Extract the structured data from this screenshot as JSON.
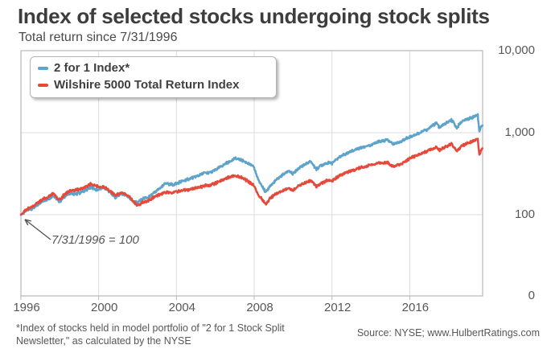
{
  "header": {
    "title": "Index of selected stocks undergoing stock splits",
    "subtitle": "Total return since 7/31/1996"
  },
  "legend": {
    "items": [
      {
        "label": "2 for 1 Index*",
        "color": "#5ea3c9"
      },
      {
        "label": "Wilshire 5000 Total Return Index",
        "color": "#e6493a"
      }
    ]
  },
  "annotation": {
    "text": "7/31/1996 = 100"
  },
  "footer": {
    "footnote": "*Index of stocks held in model portfolio of \"2 for 1 Stock Split Newsletter,\" as calculated by the NYSE",
    "source": "Source: NYSE; www.HulbertRatings.com"
  },
  "chart_data": {
    "type": "line",
    "title": "Index of selected stocks undergoing stock splits",
    "subtitle": "Total return since 7/31/1996",
    "base_note": "7/31/1996 = 100",
    "x_axis": {
      "tick_labels": [
        "1996",
        "2000",
        "2004",
        "2008",
        "2012",
        "2016"
      ],
      "start_year": 1996.58,
      "end_year": 2020.33,
      "tick_interval_years": 4
    },
    "y_axis": {
      "scale": "log",
      "tick_labels": [
        "10,000",
        "1,000",
        "100",
        "0"
      ],
      "tick_values": [
        10000,
        1000,
        100,
        0
      ],
      "gridline_values": [
        1000,
        100
      ]
    },
    "colors": {
      "grid": "#dcdcdc",
      "frame": "#b8b8b8",
      "arrow": "#555555"
    },
    "series": [
      {
        "name": "2 for 1 Index*",
        "color": "#5ea3c9",
        "points": [
          [
            1996.58,
            100
          ],
          [
            1996.9,
            113
          ],
          [
            1997.2,
            120
          ],
          [
            1997.5,
            135
          ],
          [
            1997.75,
            148
          ],
          [
            1998.0,
            155
          ],
          [
            1998.25,
            172
          ],
          [
            1998.45,
            152
          ],
          [
            1998.6,
            145
          ],
          [
            1998.8,
            165
          ],
          [
            1999.1,
            182
          ],
          [
            1999.4,
            178
          ],
          [
            1999.7,
            188
          ],
          [
            2000.0,
            205
          ],
          [
            2000.25,
            215
          ],
          [
            2000.5,
            200
          ],
          [
            2000.85,
            215
          ],
          [
            2001.1,
            195
          ],
          [
            2001.45,
            160
          ],
          [
            2001.7,
            180
          ],
          [
            2002.0,
            172
          ],
          [
            2002.35,
            146
          ],
          [
            2002.6,
            141
          ],
          [
            2002.85,
            158
          ],
          [
            2003.1,
            160
          ],
          [
            2003.5,
            190
          ],
          [
            2004.0,
            238
          ],
          [
            2004.4,
            232
          ],
          [
            2004.8,
            252
          ],
          [
            2005.2,
            272
          ],
          [
            2005.6,
            295
          ],
          [
            2006.0,
            320
          ],
          [
            2006.4,
            330
          ],
          [
            2006.8,
            380
          ],
          [
            2007.2,
            430
          ],
          [
            2007.6,
            488
          ],
          [
            2007.9,
            462
          ],
          [
            2008.2,
            430
          ],
          [
            2008.55,
            385
          ],
          [
            2008.8,
            262
          ],
          [
            2009.0,
            225
          ],
          [
            2009.17,
            185
          ],
          [
            2009.4,
            225
          ],
          [
            2009.7,
            262
          ],
          [
            2010.0,
            300
          ],
          [
            2010.35,
            345
          ],
          [
            2010.55,
            312
          ],
          [
            2010.8,
            355
          ],
          [
            2011.1,
            400
          ],
          [
            2011.5,
            445
          ],
          [
            2011.78,
            358
          ],
          [
            2012.0,
            398
          ],
          [
            2012.3,
            430
          ],
          [
            2012.6,
            425
          ],
          [
            2013.0,
            515
          ],
          [
            2013.5,
            585
          ],
          [
            2014.0,
            655
          ],
          [
            2014.5,
            700
          ],
          [
            2015.0,
            775
          ],
          [
            2015.45,
            818
          ],
          [
            2015.72,
            728
          ],
          [
            2016.1,
            775
          ],
          [
            2016.5,
            875
          ],
          [
            2017.0,
            975
          ],
          [
            2017.5,
            1105
          ],
          [
            2017.95,
            1320
          ],
          [
            2018.12,
            1155
          ],
          [
            2018.4,
            1290
          ],
          [
            2018.73,
            1425
          ],
          [
            2019.0,
            1150
          ],
          [
            2019.25,
            1370
          ],
          [
            2019.6,
            1480
          ],
          [
            2019.9,
            1560
          ],
          [
            2020.08,
            1635
          ],
          [
            2020.16,
            1040
          ],
          [
            2020.25,
            1180
          ],
          [
            2020.33,
            1230
          ]
        ]
      },
      {
        "name": "Wilshire 5000 Total Return Index",
        "color": "#e6493a",
        "points": [
          [
            1996.58,
            100
          ],
          [
            1996.9,
            117
          ],
          [
            1997.2,
            127
          ],
          [
            1997.5,
            143
          ],
          [
            1997.75,
            157
          ],
          [
            1998.0,
            165
          ],
          [
            1998.25,
            183
          ],
          [
            1998.45,
            158
          ],
          [
            1998.6,
            152
          ],
          [
            1998.8,
            175
          ],
          [
            1999.1,
            196
          ],
          [
            1999.4,
            200
          ],
          [
            1999.7,
            210
          ],
          [
            2000.0,
            222
          ],
          [
            2000.2,
            238
          ],
          [
            2000.5,
            222
          ],
          [
            2000.85,
            218
          ],
          [
            2001.1,
            200
          ],
          [
            2001.45,
            170
          ],
          [
            2001.7,
            186
          ],
          [
            2002.0,
            178
          ],
          [
            2002.35,
            148
          ],
          [
            2002.6,
            128
          ],
          [
            2002.85,
            142
          ],
          [
            2003.1,
            146
          ],
          [
            2003.5,
            168
          ],
          [
            2004.0,
            188
          ],
          [
            2004.4,
            186
          ],
          [
            2004.8,
            196
          ],
          [
            2005.2,
            202
          ],
          [
            2005.6,
            210
          ],
          [
            2006.0,
            225
          ],
          [
            2006.4,
            232
          ],
          [
            2006.8,
            255
          ],
          [
            2007.2,
            282
          ],
          [
            2007.6,
            300
          ],
          [
            2007.9,
            288
          ],
          [
            2008.2,
            262
          ],
          [
            2008.55,
            232
          ],
          [
            2008.8,
            172
          ],
          [
            2009.0,
            152
          ],
          [
            2009.17,
            135
          ],
          [
            2009.4,
            158
          ],
          [
            2009.7,
            178
          ],
          [
            2010.0,
            192
          ],
          [
            2010.35,
            212
          ],
          [
            2010.55,
            196
          ],
          [
            2010.8,
            218
          ],
          [
            2011.1,
            240
          ],
          [
            2011.5,
            258
          ],
          [
            2011.78,
            222
          ],
          [
            2012.0,
            240
          ],
          [
            2012.3,
            262
          ],
          [
            2012.6,
            258
          ],
          [
            2013.0,
            305
          ],
          [
            2013.5,
            340
          ],
          [
            2014.0,
            372
          ],
          [
            2014.5,
            398
          ],
          [
            2015.0,
            425
          ],
          [
            2015.45,
            432
          ],
          [
            2015.72,
            388
          ],
          [
            2016.1,
            412
          ],
          [
            2016.5,
            472
          ],
          [
            2017.0,
            535
          ],
          [
            2017.5,
            595
          ],
          [
            2017.95,
            668
          ],
          [
            2018.12,
            612
          ],
          [
            2018.4,
            668
          ],
          [
            2018.73,
            728
          ],
          [
            2019.0,
            588
          ],
          [
            2019.25,
            690
          ],
          [
            2019.6,
            752
          ],
          [
            2019.9,
            800
          ],
          [
            2020.08,
            838
          ],
          [
            2020.16,
            532
          ],
          [
            2020.25,
            610
          ],
          [
            2020.33,
            652
          ]
        ]
      }
    ]
  }
}
